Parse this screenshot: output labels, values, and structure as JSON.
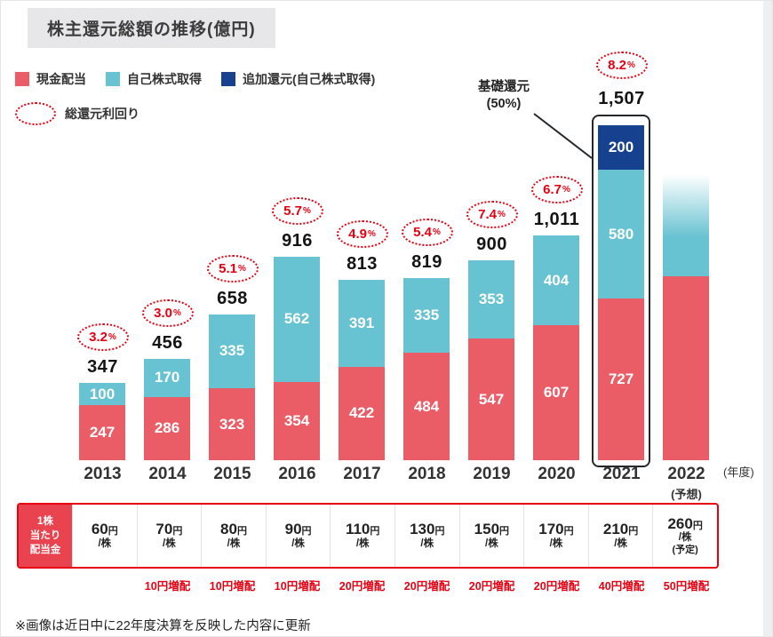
{
  "page": {
    "title": "株主還元総額の推移(億円)",
    "note": "※画像は近日中に22年度決算を反映した内容に更新",
    "axis_unit": "(年度)"
  },
  "legend": {
    "cash": "現金配当",
    "buyback": "自己株式取得",
    "extra": "追加還元(自己株式取得)",
    "yield": "総還元利回り"
  },
  "annotation": {
    "line1": "基礎還元",
    "line2": "(50%)"
  },
  "dividend_table": {
    "header_l1": "1株",
    "header_l2": "当たり",
    "header_l3": "配当金",
    "yen": "円",
    "per_share": "/株"
  },
  "colors": {
    "cash": "#ea5d66",
    "buyback": "#67c2d1",
    "extra": "#15418f",
    "accent": "#e60012"
  },
  "chart_data": {
    "type": "bar",
    "stacked": true,
    "title": "株主還元総額の推移(億円)",
    "unit": "億円",
    "xlabel": "年度",
    "yield_unit": "%",
    "series_names": [
      "現金配当",
      "自己株式取得",
      "追加還元(自己株式取得)"
    ],
    "bars": [
      {
        "year": "2013",
        "cash": 247,
        "buyback": 100,
        "extra": 0,
        "cash_label": "247",
        "buyback_label": "100",
        "extra_label": "",
        "total": "347",
        "yield": "3.2",
        "dividend_amount": "60",
        "dividend_note": "",
        "increase": ""
      },
      {
        "year": "2014",
        "cash": 286,
        "buyback": 170,
        "extra": 0,
        "cash_label": "286",
        "buyback_label": "170",
        "extra_label": "",
        "total": "456",
        "yield": "3.0",
        "dividend_amount": "70",
        "dividend_note": "",
        "increase": "10円増配"
      },
      {
        "year": "2015",
        "cash": 323,
        "buyback": 335,
        "extra": 0,
        "cash_label": "323",
        "buyback_label": "335",
        "extra_label": "",
        "total": "658",
        "yield": "5.1",
        "dividend_amount": "80",
        "dividend_note": "",
        "increase": "10円増配"
      },
      {
        "year": "2016",
        "cash": 354,
        "buyback": 562,
        "extra": 0,
        "cash_label": "354",
        "buyback_label": "562",
        "extra_label": "",
        "total": "916",
        "yield": "5.7",
        "dividend_amount": "90",
        "dividend_note": "",
        "increase": "10円増配"
      },
      {
        "year": "2017",
        "cash": 422,
        "buyback": 391,
        "extra": 0,
        "cash_label": "422",
        "buyback_label": "391",
        "extra_label": "",
        "total": "813",
        "yield": "4.9",
        "dividend_amount": "110",
        "dividend_note": "",
        "increase": "20円増配"
      },
      {
        "year": "2018",
        "cash": 484,
        "buyback": 335,
        "extra": 0,
        "cash_label": "484",
        "buyback_label": "335",
        "extra_label": "",
        "total": "819",
        "yield": "5.4",
        "dividend_amount": "130",
        "dividend_note": "",
        "increase": "20円増配"
      },
      {
        "year": "2019",
        "cash": 547,
        "buyback": 353,
        "extra": 0,
        "cash_label": "547",
        "buyback_label": "353",
        "extra_label": "",
        "total": "900",
        "yield": "7.4",
        "dividend_amount": "150",
        "dividend_note": "",
        "increase": "20円増配"
      },
      {
        "year": "2020",
        "cash": 607,
        "buyback": 404,
        "extra": 0,
        "cash_label": "607",
        "buyback_label": "404",
        "extra_label": "",
        "total": "1,011",
        "yield": "6.7",
        "dividend_amount": "170",
        "dividend_note": "",
        "increase": "20円増配"
      },
      {
        "year": "2021",
        "cash": 727,
        "buyback": 580,
        "extra": 200,
        "cash_label": "727",
        "buyback_label": "580",
        "extra_label": "200",
        "total": "1,507",
        "yield": "8.2",
        "dividend_amount": "210",
        "dividend_note": "",
        "increase": "40円増配",
        "highlight": true
      },
      {
        "year": "2022",
        "year_note": "(予想)",
        "cash": 830,
        "buyback": 500,
        "extra": 0,
        "cash_label": "",
        "buyback_label": "",
        "extra_label": "",
        "total": "",
        "yield": "",
        "dividend_amount": "260",
        "dividend_note": "(予定)",
        "increase": "50円増配",
        "forecast": true,
        "values_estimated_from_pixels": true
      }
    ]
  }
}
